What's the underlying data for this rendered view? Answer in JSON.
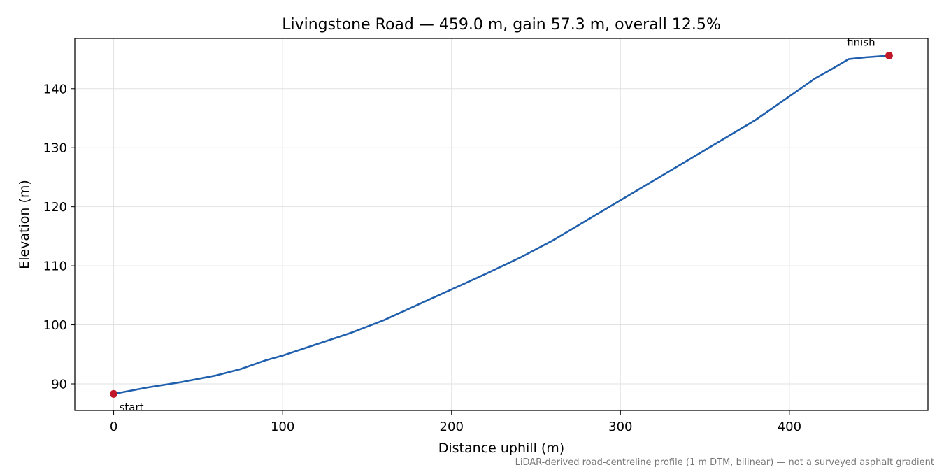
{
  "chart_data": {
    "type": "line",
    "title": "Livingstone Road — 459.0 m, gain 57.3 m, overall 12.5%",
    "xlabel": "Distance uphill (m)",
    "ylabel": "Elevation (m)",
    "footnote": "LiDAR-derived road-centreline profile (1 m DTM, bilinear) — not a surveyed asphalt gradient",
    "xlim": [
      -23,
      482
    ],
    "ylim": [
      85.5,
      148.5
    ],
    "xticks": [
      0,
      100,
      200,
      300,
      400
    ],
    "yticks": [
      90,
      100,
      110,
      120,
      130,
      140
    ],
    "grid": true,
    "line_color": "#1f5fad",
    "marker_color": "#c0182a",
    "series": [
      {
        "x": [
          0,
          20,
          40,
          60,
          75,
          90,
          100,
          120,
          140,
          160,
          180,
          200,
          220,
          240,
          260,
          280,
          300,
          320,
          340,
          360,
          380,
          400,
          415,
          425,
          435,
          445,
          459
        ],
        "y": [
          88.3,
          89.4,
          90.3,
          91.4,
          92.5,
          94.0,
          94.8,
          96.7,
          98.6,
          100.8,
          103.4,
          106.0,
          108.6,
          111.3,
          114.3,
          117.7,
          121.1,
          124.5,
          127.9,
          131.3,
          134.7,
          138.7,
          141.7,
          143.3,
          145.0,
          145.3,
          145.6
        ]
      }
    ],
    "annotations": [
      {
        "label": "start",
        "x": 0,
        "y": 88.3
      },
      {
        "label": "finish",
        "x": 459,
        "y": 145.6
      }
    ]
  }
}
